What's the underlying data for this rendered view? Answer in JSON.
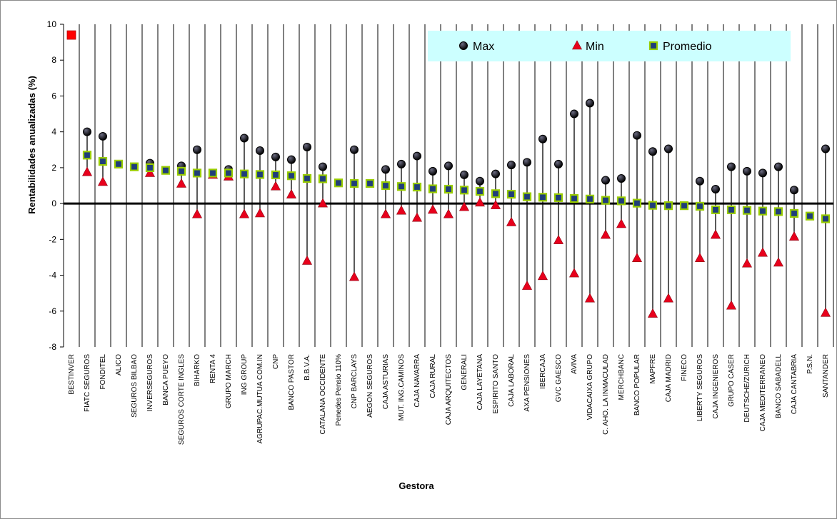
{
  "chart_data": {
    "type": "scatter",
    "xlabel": "Gestora",
    "ylabel": "Rentabilidades anualizadas (%)",
    "ylim": [
      -8,
      10
    ],
    "yticks": [
      -8,
      -6,
      -4,
      -2,
      0,
      2,
      4,
      6,
      8,
      10
    ],
    "grid": "vertical lines per category",
    "legend_position": "top-right",
    "legend_background": "#ccffff",
    "colors": {
      "max": "#000000",
      "min": "#e8001c",
      "promedio": "#1f3d7a",
      "promedio_border": "#99cc00",
      "single": "#ff0000"
    },
    "categories": [
      "BESTINVER",
      "FIATC SEGUROS",
      "FONDITEL",
      "ALICO",
      "SEGUROS BILBAO",
      "INVERSEGUROS",
      "BANCA PUEYO",
      "SEGUROS CORTE INGLES",
      "BIHARKO",
      "RENTA 4",
      "GRUPO MARCH",
      "ING GROUP",
      "AGRUPAC.MUTUA COM.IN",
      "CNP",
      "BANCO PASTOR",
      "B.B.V.A.",
      "CATALANA OCCIDENTE",
      "Penedes Pensio 110%",
      "CNP BARCLAYS",
      "AEGON SEGUROS",
      "CAJA ASTURIAS",
      "MUT. ING.CAMINOS",
      "CAJA NAVARRA",
      "CAJA RURAL",
      "CAJA ARQUITECTOS",
      "GENERALI",
      "CAJA LAYETANA",
      "ESPIRITO SANTO",
      "CAJA LABORAL",
      "AXA PENSIONES",
      "IBERCAJA",
      "GVC GAESCO",
      "AVIVA",
      "VIDACAIXA GRUPO",
      "C. AHO. LA INMACULAD",
      "MERCHBANC",
      "BANCO POPULAR",
      "MAPFRE",
      "CAJA MADRID",
      "FINECO",
      "LIBERTY SEGUROS",
      "CAJA INGENIEROS",
      "GRUPO CASER",
      "DEUTSCHE/ZURICH",
      "CAJA MEDITERRANEO",
      "BANCO SABADELL",
      "CAJA CANTABRIA",
      "P.S.N.",
      "SANTANDER"
    ],
    "series": [
      {
        "name": "Max",
        "marker": "circle",
        "values": [
          null,
          4.0,
          3.75,
          null,
          null,
          2.25,
          null,
          2.1,
          3.0,
          null,
          1.9,
          3.65,
          2.95,
          2.6,
          2.45,
          3.15,
          2.05,
          null,
          3.0,
          null,
          1.9,
          2.2,
          2.65,
          1.8,
          2.1,
          1.6,
          1.25,
          1.65,
          2.15,
          2.3,
          3.6,
          2.2,
          5.0,
          5.6,
          1.3,
          1.4,
          3.8,
          2.9,
          3.05,
          null,
          1.25,
          0.8,
          2.05,
          1.8,
          1.7,
          2.05,
          0.75,
          null,
          3.05
        ]
      },
      {
        "name": "Min",
        "marker": "triangle",
        "values": [
          null,
          1.75,
          1.2,
          null,
          null,
          1.7,
          null,
          1.1,
          -0.6,
          1.6,
          1.5,
          -0.6,
          -0.55,
          0.95,
          0.5,
          -3.2,
          0.0,
          null,
          -4.1,
          null,
          -0.6,
          -0.4,
          -0.8,
          -0.35,
          -0.6,
          -0.2,
          0.05,
          -0.1,
          -1.05,
          -4.6,
          -4.05,
          -2.05,
          -3.9,
          -5.3,
          -1.75,
          -1.15,
          -3.05,
          -6.15,
          -5.3,
          null,
          -3.05,
          -1.75,
          -5.7,
          -3.35,
          -2.75,
          -3.3,
          -1.85,
          null,
          -6.1
        ]
      },
      {
        "name": "Promedio",
        "marker": "square",
        "values": [
          null,
          2.7,
          2.35,
          2.2,
          2.05,
          2.0,
          1.85,
          1.8,
          1.7,
          1.7,
          1.7,
          1.65,
          1.62,
          1.6,
          1.55,
          1.4,
          1.38,
          1.15,
          1.12,
          1.12,
          1.0,
          0.95,
          0.92,
          0.82,
          0.8,
          0.75,
          0.68,
          0.55,
          0.52,
          0.38,
          0.35,
          0.33,
          0.28,
          0.25,
          0.18,
          0.15,
          0.02,
          -0.1,
          -0.12,
          -0.12,
          -0.15,
          -0.35,
          -0.35,
          -0.38,
          -0.42,
          -0.45,
          -0.55,
          -0.7,
          -0.85
        ]
      }
    ],
    "single_value_marker": {
      "category": "BESTINVER",
      "value": 9.4
    }
  }
}
